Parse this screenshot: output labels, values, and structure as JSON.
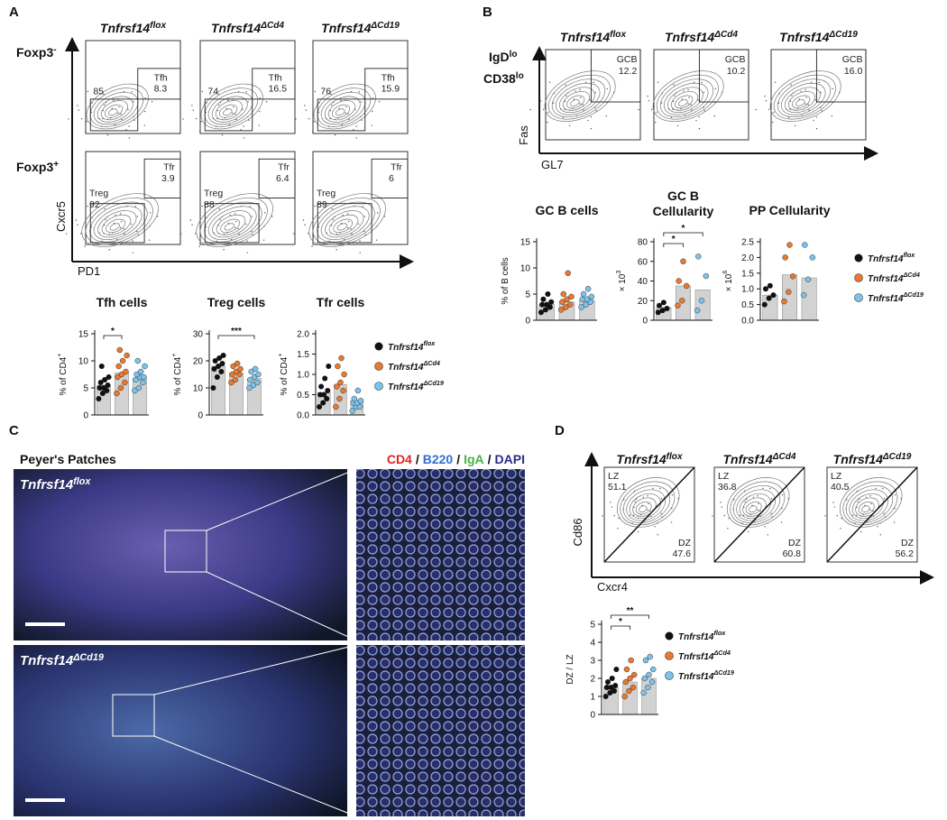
{
  "panel_a": {
    "label": "A",
    "columns": [
      {
        "base": "Tnfrsf14",
        "sup": "flox"
      },
      {
        "base": "Tnfrsf14",
        "sup": "ΔCd4"
      },
      {
        "base": "Tnfrsf14",
        "sup": "ΔCd19"
      }
    ],
    "rows": [
      {
        "label": {
          "base": "Foxp3",
          "sup": "-"
        },
        "gates": [
          {
            "left_value": 85,
            "gate": "Tfh",
            "gate_value": 8.3
          },
          {
            "left_value": 74,
            "gate": "Tfh",
            "gate_value": 16.5
          },
          {
            "left_value": 76,
            "gate": "Tfh",
            "gate_value": 15.9
          }
        ]
      },
      {
        "label": {
          "base": "Foxp3",
          "sup": "+"
        },
        "gates": [
          {
            "left_name": "Treg",
            "left_value": 92,
            "gate": "Tfr",
            "gate_value": 3.9
          },
          {
            "left_name": "Treg",
            "left_value": 88,
            "gate": "Tfr",
            "gate_value": 6.4
          },
          {
            "left_name": "Treg",
            "left_value": 89,
            "gate": "Tfr",
            "gate_value": 6
          }
        ]
      }
    ],
    "y_axis": "Cxcr5",
    "x_axis": "PD1",
    "legend": [
      {
        "name": {
          "base": "Tnfrsf14",
          "sup": "flox"
        },
        "color": "#111111"
      },
      {
        "name": {
          "base": "Tnfrsf14",
          "sup": "ΔCd4"
        },
        "color": "#e8792e"
      },
      {
        "name": {
          "base": "Tnfrsf14",
          "sup": "ΔCd19"
        },
        "color": "#7cc3ec"
      }
    ],
    "charts": [
      {
        "type": "bar",
        "title": "Tfh cells",
        "ylabel": {
          "base": "% of CD4",
          "sup": "+"
        },
        "ylim": [
          0,
          15
        ],
        "yticks": [
          0,
          5,
          10,
          15
        ],
        "values": [
          5.5,
          7.8,
          6.8
        ],
        "points": [
          [
            3,
            4,
            4.5,
            5,
            5,
            5.5,
            6,
            6.5,
            7,
            9
          ],
          [
            4,
            5,
            6,
            7,
            7.5,
            8,
            9,
            10,
            11,
            12
          ],
          [
            4.5,
            5,
            6,
            6.5,
            7,
            7,
            7.5,
            8,
            9,
            10
          ]
        ],
        "significance": [
          {
            "pair": [
              0,
              1
            ],
            "label": "*"
          }
        ]
      },
      {
        "type": "bar",
        "title": "Treg cells",
        "ylabel": {
          "base": "% of CD4",
          "sup": "+"
        },
        "ylim": [
          0,
          30
        ],
        "yticks": [
          0,
          10,
          20,
          30
        ],
        "values": [
          18,
          15.5,
          13.5
        ],
        "points": [
          [
            10,
            14,
            16,
            17,
            18,
            19,
            20,
            21,
            22
          ],
          [
            12,
            13,
            15,
            15,
            16,
            17,
            18,
            19
          ],
          [
            10,
            11,
            12,
            13,
            14,
            15,
            16,
            17
          ]
        ],
        "significance": [
          {
            "pair": [
              0,
              2
            ],
            "label": "***"
          }
        ]
      },
      {
        "type": "bar",
        "title": "Tfr cells",
        "ylabel": {
          "base": "% of CD4",
          "sup": "+"
        },
        "ylim": [
          0,
          2
        ],
        "yticks": [
          {
            "value": 0,
            "label": "0.0"
          },
          0.5,
          {
            "value": 1,
            "label": "1.0"
          },
          1.5,
          {
            "value": 2,
            "label": "2.0"
          }
        ],
        "values": [
          0.55,
          0.75,
          0.35
        ],
        "points": [
          [
            0.2,
            0.3,
            0.4,
            0.5,
            0.5,
            0.6,
            0.7,
            0.9,
            1.2
          ],
          [
            0.2,
            0.4,
            0.6,
            0.7,
            0.8,
            1.0,
            1.2,
            1.4
          ],
          [
            0.1,
            0.2,
            0.2,
            0.3,
            0.3,
            0.35,
            0.4,
            0.6
          ]
        ],
        "significance": []
      }
    ]
  },
  "panel_b": {
    "label": "B",
    "columns": [
      {
        "base": "Tnfrsf14",
        "sup": "flox"
      },
      {
        "base": "Tnfrsf14",
        "sup": "ΔCd4"
      },
      {
        "base": "Tnfrsf14",
        "sup": "ΔCd19"
      }
    ],
    "gates": [
      {
        "gate": "GCB",
        "gate_value": 12.2
      },
      {
        "gate": "GCB",
        "gate_value": 10.2
      },
      {
        "gate": "GCB",
        "gate_value": {
          "value": 16,
          "label": "16.0"
        }
      }
    ],
    "pregate": [
      {
        "base": "IgD",
        "sup": "lo"
      },
      {
        "base": "CD38",
        "sup": "lo"
      }
    ],
    "y_axis": "Fas",
    "x_axis": "GL7",
    "legend": [
      {
        "name": {
          "base": "Tnfrsf14",
          "sup": "flox"
        },
        "color": "#111111"
      },
      {
        "name": {
          "base": "Tnfrsf14",
          "sup": "ΔCd4"
        },
        "color": "#e8792e"
      },
      {
        "name": {
          "base": "Tnfrsf14",
          "sup": "ΔCd19"
        },
        "color": "#7cc3ec"
      }
    ],
    "charts": [
      {
        "type": "bar",
        "title": [
          "GC B cells"
        ],
        "ylabel": "% of B cells",
        "ylim": [
          0,
          15
        ],
        "yticks": [
          0,
          5,
          10,
          15
        ],
        "values": [
          3,
          3.5,
          3.8
        ],
        "points": [
          [
            1.5,
            2,
            2.5,
            3,
            3,
            3.5,
            4,
            5
          ],
          [
            2,
            2.5,
            3,
            3.5,
            4,
            4.5,
            5,
            9
          ],
          [
            2.5,
            3,
            3.5,
            4,
            4,
            4.5,
            5,
            6
          ]
        ],
        "significance": []
      },
      {
        "type": "bar",
        "title": [
          "GC B",
          "Cellularity"
        ],
        "ylabel": {
          "base": "× 10",
          "sup": "3"
        },
        "ylim": [
          0,
          80
        ],
        "yticks": [
          0,
          20,
          40,
          60,
          80
        ],
        "values": [
          13,
          35,
          31
        ],
        "points": [
          [
            8,
            10,
            12,
            15,
            18
          ],
          [
            15,
            20,
            35,
            40,
            60
          ],
          [
            10,
            20,
            45,
            65
          ]
        ],
        "significance": [
          {
            "pair": [
              0,
              1
            ],
            "label": "*"
          },
          {
            "pair": [
              0,
              2
            ],
            "label": "*"
          }
        ]
      },
      {
        "type": "bar",
        "title": [
          "PP Cellularity"
        ],
        "ylabel": {
          "base": "× 10",
          "sup": "6"
        },
        "ylim": [
          0,
          2.5
        ],
        "yticks": [
          {
            "value": 0,
            "label": "0.0"
          },
          0.5,
          {
            "value": 1,
            "label": "1.0"
          },
          1.5,
          {
            "value": 2,
            "label": "2.0"
          },
          2.5
        ],
        "values": [
          0.8,
          1.45,
          1.35
        ],
        "points": [
          [
            0.5,
            0.7,
            0.8,
            1.0,
            1.1
          ],
          [
            0.6,
            0.9,
            1.4,
            2.0,
            2.4
          ],
          [
            0.8,
            1.3,
            2.0,
            2.4
          ]
        ],
        "significance": []
      }
    ]
  },
  "panel_c": {
    "label": "C",
    "title": "Peyer's Patches",
    "stains": [
      {
        "text": "CD4",
        "color": "#e02424"
      },
      {
        "text": "B220",
        "color": "#2f6fd0"
      },
      {
        "text": "IgA",
        "color": "#46b046"
      },
      {
        "text": "DAPI",
        "color": "#2a2a8c"
      }
    ],
    "separator": "/",
    "images": [
      {
        "base": "Tnfrsf14",
        "sup": "flox"
      },
      {
        "base": "Tnfrsf14",
        "sup": "ΔCd19"
      }
    ]
  },
  "panel_d": {
    "label": "D",
    "columns": [
      {
        "base": "Tnfrsf14",
        "sup": "flox"
      },
      {
        "base": "Tnfrsf14",
        "sup": "ΔCd4"
      },
      {
        "base": "Tnfrsf14",
        "sup": "ΔCd19"
      }
    ],
    "gates": [
      {
        "lz_label": "LZ",
        "lz": 51.1,
        "dz_label": "DZ",
        "dz": 47.6
      },
      {
        "lz_label": "LZ",
        "lz": 36.8,
        "dz_label": "DZ",
        "dz": 60.8
      },
      {
        "lz_label": "LZ",
        "lz": 40.5,
        "dz_label": "DZ",
        "dz": 56.2
      }
    ],
    "y_axis": "Cd86",
    "x_axis": "Cxcr4",
    "legend": [
      {
        "name": {
          "base": "Tnfrsf14",
          "sup": "flox"
        },
        "color": "#111111"
      },
      {
        "name": {
          "base": "Tnfrsf14",
          "sup": "ΔCd4"
        },
        "color": "#e8792e"
      },
      {
        "name": {
          "base": "Tnfrsf14",
          "sup": "ΔCd19"
        },
        "color": "#7cc3ec"
      }
    ],
    "charts": [
      {
        "type": "bar",
        "ylabel": "DZ / LZ",
        "ylim": [
          0,
          5
        ],
        "yticks": [
          0,
          1,
          2,
          3,
          4,
          5
        ],
        "values": [
          1.5,
          1.8,
          2.0
        ],
        "points": [
          [
            1,
            1.2,
            1.3,
            1.5,
            1.5,
            1.6,
            1.8,
            2,
            2.5
          ],
          [
            1,
            1.3,
            1.5,
            1.8,
            2,
            2.2,
            2.5,
            3
          ],
          [
            1.2,
            1.5,
            1.8,
            2,
            2.2,
            2.5,
            3,
            3.2
          ]
        ],
        "significance": [
          {
            "pair": [
              0,
              1
            ],
            "label": "*"
          },
          {
            "pair": [
              0,
              2
            ],
            "label": "**"
          }
        ]
      }
    ]
  }
}
